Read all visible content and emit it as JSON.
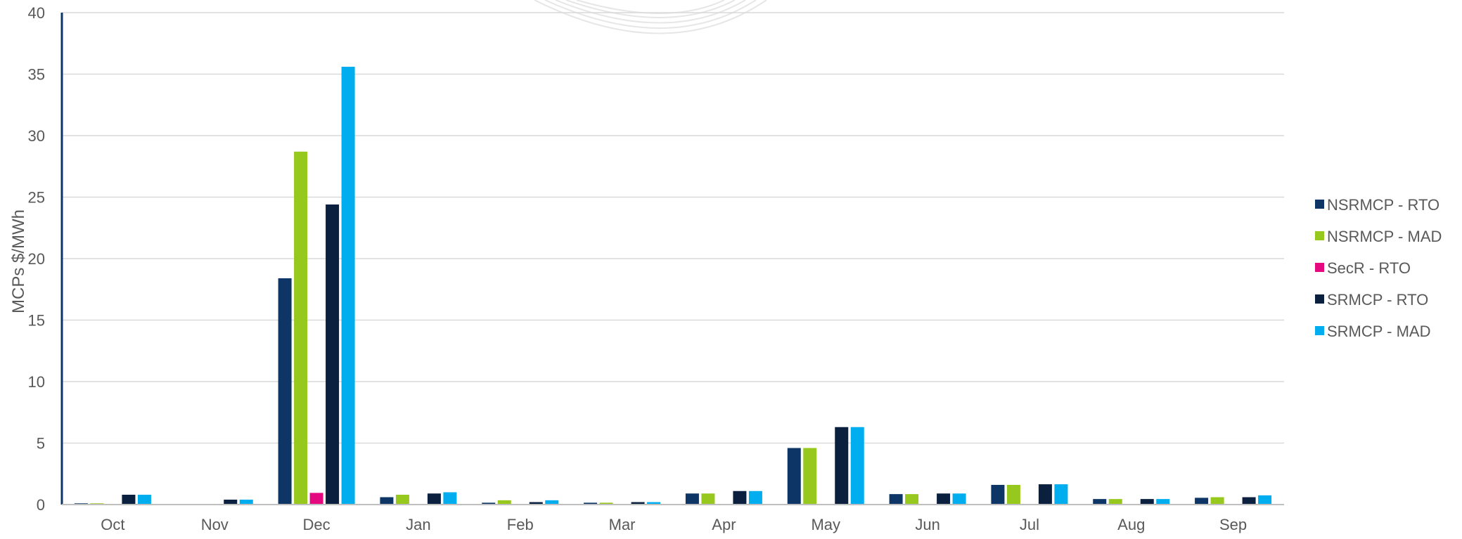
{
  "chart_data": {
    "type": "bar",
    "title": "",
    "xlabel": "",
    "ylabel": "MCPs $/MWh",
    "ylim": [
      0,
      40
    ],
    "yticks": [
      0,
      5,
      10,
      15,
      20,
      25,
      30,
      35,
      40
    ],
    "grid": true,
    "legend_position": "right",
    "categories": [
      "Oct",
      "Nov",
      "Dec",
      "Jan",
      "Feb",
      "Mar",
      "Apr",
      "May",
      "Jun",
      "Jul",
      "Aug",
      "Sep"
    ],
    "series": [
      {
        "name": "NSRMCP - RTO",
        "color": "#0d3566",
        "values": [
          0.1,
          0.0,
          18.4,
          0.6,
          0.15,
          0.15,
          0.9,
          4.6,
          0.85,
          1.6,
          0.45,
          0.55
        ]
      },
      {
        "name": "NSRMCP - MAD",
        "color": "#97c81e",
        "values": [
          0.1,
          0.0,
          28.7,
          0.8,
          0.35,
          0.15,
          0.9,
          4.6,
          0.85,
          1.6,
          0.45,
          0.6
        ]
      },
      {
        "name": "SecR - RTO",
        "color": "#e5097f",
        "values": [
          0.0,
          0.0,
          0.95,
          0.0,
          0.0,
          0.0,
          0.0,
          0.0,
          0.0,
          0.0,
          0.0,
          0.0
        ]
      },
      {
        "name": "SRMCP - RTO",
        "color": "#0b1f3f",
        "values": [
          0.8,
          0.4,
          24.4,
          0.9,
          0.2,
          0.2,
          1.1,
          6.3,
          0.9,
          1.65,
          0.45,
          0.6
        ]
      },
      {
        "name": "SRMCP - MAD",
        "color": "#00adee",
        "values": [
          0.8,
          0.4,
          35.6,
          1.0,
          0.35,
          0.2,
          1.1,
          6.3,
          0.9,
          1.65,
          0.45,
          0.75
        ]
      }
    ]
  }
}
